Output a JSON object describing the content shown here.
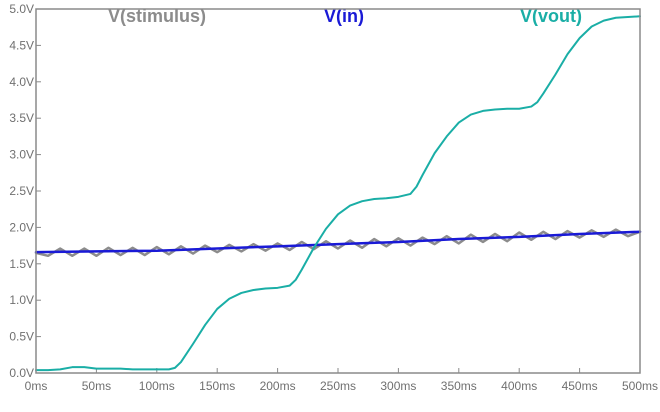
{
  "chart_data": {
    "type": "line",
    "title": "",
    "xlabel": "",
    "ylabel": "",
    "xlim": [
      0,
      500
    ],
    "ylim": [
      0,
      5.0
    ],
    "x_ticks": [
      0,
      50,
      100,
      150,
      200,
      250,
      300,
      350,
      400,
      450,
      500
    ],
    "x_tick_labels": [
      "0ms",
      "50ms",
      "100ms",
      "150ms",
      "200ms",
      "250ms",
      "300ms",
      "350ms",
      "400ms",
      "450ms",
      "500ms"
    ],
    "y_ticks": [
      0,
      0.5,
      1.0,
      1.5,
      2.0,
      2.5,
      3.0,
      3.5,
      4.0,
      4.5,
      5.0
    ],
    "y_tick_labels": [
      "0.0V",
      "0.5V",
      "1.0V",
      "1.5V",
      "2.0V",
      "2.5V",
      "3.0V",
      "3.5V",
      "4.0V",
      "4.5V",
      "5.0V"
    ],
    "grid": false,
    "legend_position": "top",
    "series": [
      {
        "name": "V(stimulus)",
        "color": "#8c8c8c",
        "x": [
          0,
          10,
          20,
          30,
          40,
          50,
          60,
          70,
          80,
          90,
          100,
          110,
          120,
          130,
          140,
          150,
          160,
          170,
          180,
          190,
          200,
          210,
          220,
          230,
          240,
          250,
          260,
          270,
          280,
          290,
          300,
          310,
          320,
          330,
          340,
          350,
          360,
          370,
          380,
          390,
          400,
          410,
          420,
          430,
          440,
          450,
          460,
          470,
          480,
          490,
          500
        ],
        "y": [
          1.65,
          1.61,
          1.71,
          1.61,
          1.71,
          1.61,
          1.72,
          1.62,
          1.72,
          1.62,
          1.73,
          1.63,
          1.74,
          1.64,
          1.75,
          1.66,
          1.76,
          1.67,
          1.77,
          1.68,
          1.78,
          1.69,
          1.8,
          1.7,
          1.81,
          1.71,
          1.82,
          1.72,
          1.84,
          1.74,
          1.85,
          1.75,
          1.86,
          1.77,
          1.88,
          1.78,
          1.9,
          1.8,
          1.91,
          1.81,
          1.93,
          1.83,
          1.94,
          1.84,
          1.95,
          1.86,
          1.96,
          1.87,
          1.97,
          1.88,
          1.94
        ]
      },
      {
        "name": "V(in)",
        "color": "#1a1ad6",
        "x": [
          0,
          50,
          100,
          150,
          200,
          250,
          300,
          350,
          400,
          450,
          500
        ],
        "y": [
          1.66,
          1.67,
          1.68,
          1.71,
          1.74,
          1.77,
          1.8,
          1.84,
          1.87,
          1.91,
          1.94
        ]
      },
      {
        "name": "V(vout)",
        "color": "#1aaea6",
        "x": [
          0,
          10,
          20,
          30,
          40,
          50,
          60,
          70,
          80,
          90,
          100,
          110,
          115,
          120,
          130,
          140,
          150,
          160,
          170,
          180,
          190,
          200,
          210,
          215,
          220,
          230,
          240,
          250,
          260,
          270,
          280,
          290,
          300,
          310,
          315,
          320,
          330,
          340,
          350,
          360,
          370,
          380,
          390,
          400,
          410,
          415,
          420,
          430,
          440,
          450,
          460,
          470,
          480,
          490,
          500
        ],
        "y": [
          0.04,
          0.04,
          0.05,
          0.08,
          0.08,
          0.06,
          0.06,
          0.06,
          0.05,
          0.05,
          0.05,
          0.05,
          0.07,
          0.15,
          0.4,
          0.66,
          0.88,
          1.02,
          1.1,
          1.14,
          1.16,
          1.17,
          1.2,
          1.28,
          1.42,
          1.72,
          1.98,
          2.18,
          2.3,
          2.36,
          2.39,
          2.4,
          2.42,
          2.46,
          2.56,
          2.72,
          3.02,
          3.25,
          3.44,
          3.55,
          3.6,
          3.62,
          3.63,
          3.63,
          3.66,
          3.72,
          3.84,
          4.1,
          4.38,
          4.6,
          4.76,
          4.84,
          4.88,
          4.89,
          4.9
        ]
      }
    ]
  }
}
